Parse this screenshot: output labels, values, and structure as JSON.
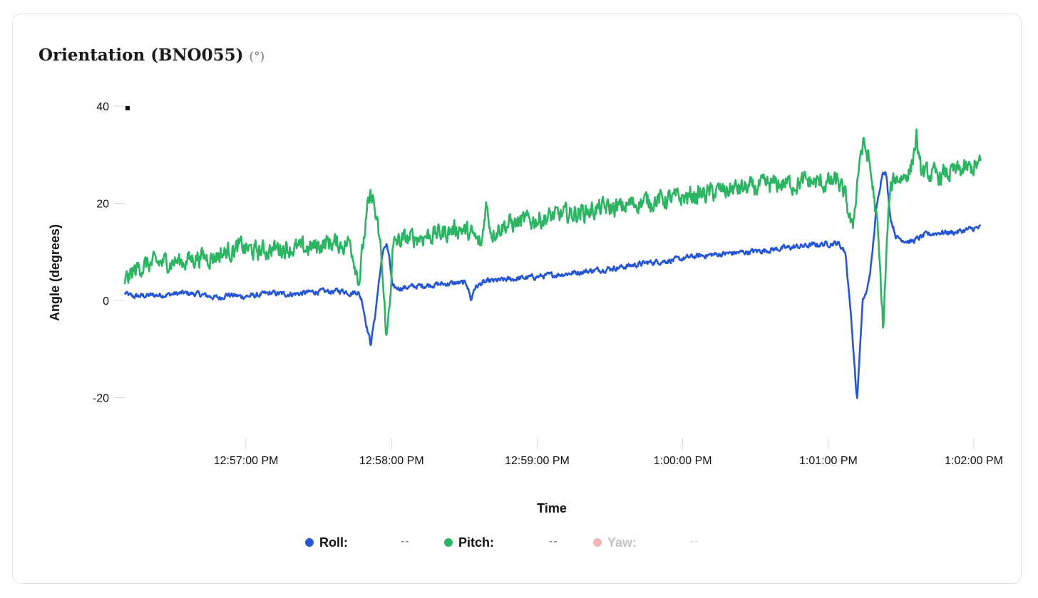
{
  "card": {
    "title": "Orientation (BNO055)",
    "unit": "(°)"
  },
  "chart_data": {
    "type": "line",
    "title": "Orientation (BNO055)",
    "xlabel": "Time",
    "ylabel": "Angle (degrees)",
    "ylim": [
      -30,
      40
    ],
    "yticks": [
      -20,
      0,
      20,
      40
    ],
    "xlim_minutes": [
      0,
      5.9
    ],
    "xticks": [
      {
        "t": 0.833,
        "label": "12:57:00 PM"
      },
      {
        "t": 1.833,
        "label": "12:58:00 PM"
      },
      {
        "t": 2.833,
        "label": "12:59:00 PM"
      },
      {
        "t": 3.833,
        "label": "1:00:00 PM"
      },
      {
        "t": 4.833,
        "label": "1:01:00 PM"
      },
      {
        "t": 5.833,
        "label": "1:02:00 PM"
      }
    ],
    "start_time": "12:56:10 PM",
    "series": [
      {
        "name": "Roll",
        "color": "#2456d6",
        "points": [
          [
            0.0,
            1.5
          ],
          [
            0.05,
            0.8
          ],
          [
            0.15,
            1.0
          ],
          [
            0.3,
            1.2
          ],
          [
            0.4,
            1.5
          ],
          [
            0.5,
            1.3
          ],
          [
            0.65,
            0.5
          ],
          [
            0.7,
            1.2
          ],
          [
            0.8,
            0.8
          ],
          [
            0.9,
            1.0
          ],
          [
            1.0,
            1.5
          ],
          [
            1.1,
            1.3
          ],
          [
            1.2,
            1.4
          ],
          [
            1.3,
            1.8
          ],
          [
            1.4,
            1.8
          ],
          [
            1.5,
            2.0
          ],
          [
            1.55,
            1.5
          ],
          [
            1.6,
            1.8
          ],
          [
            1.63,
            0.0
          ],
          [
            1.66,
            -5.0
          ],
          [
            1.69,
            -9.0
          ],
          [
            1.72,
            -3.0
          ],
          [
            1.75,
            5.0
          ],
          [
            1.78,
            11.0
          ],
          [
            1.8,
            11.5
          ],
          [
            1.82,
            8.0
          ],
          [
            1.84,
            2.5
          ],
          [
            1.9,
            2.6
          ],
          [
            2.0,
            2.9
          ],
          [
            2.1,
            3.2
          ],
          [
            2.2,
            3.4
          ],
          [
            2.3,
            3.6
          ],
          [
            2.35,
            3.5
          ],
          [
            2.38,
            0.0
          ],
          [
            2.4,
            2.5
          ],
          [
            2.45,
            3.5
          ],
          [
            2.5,
            3.9
          ],
          [
            2.6,
            4.2
          ],
          [
            2.8,
            4.8
          ],
          [
            3.0,
            5.4
          ],
          [
            3.2,
            6.1
          ],
          [
            3.4,
            6.8
          ],
          [
            3.6,
            7.8
          ],
          [
            3.8,
            8.4
          ],
          [
            3.9,
            9.0
          ],
          [
            4.0,
            9.3
          ],
          [
            4.2,
            9.8
          ],
          [
            4.4,
            10.3
          ],
          [
            4.6,
            11.0
          ],
          [
            4.8,
            11.6
          ],
          [
            4.9,
            11.8
          ],
          [
            4.95,
            10.0
          ],
          [
            4.98,
            0.0
          ],
          [
            5.01,
            -12.0
          ],
          [
            5.03,
            -21.0
          ],
          [
            5.05,
            -10.0
          ],
          [
            5.07,
            0.0
          ],
          [
            5.1,
            2.0
          ],
          [
            5.13,
            8.0
          ],
          [
            5.16,
            18.0
          ],
          [
            5.19,
            24.0
          ],
          [
            5.21,
            27.0
          ],
          [
            5.23,
            26.0
          ],
          [
            5.26,
            17.0
          ],
          [
            5.3,
            13.0
          ],
          [
            5.4,
            12.0
          ],
          [
            5.5,
            13.5
          ],
          [
            5.6,
            14.0
          ],
          [
            5.7,
            14.0
          ],
          [
            5.8,
            14.6
          ],
          [
            5.88,
            15.0
          ]
        ]
      },
      {
        "name": "Pitch",
        "color": "#2bb462",
        "points": [
          [
            0.0,
            4.0
          ],
          [
            0.1,
            7.0
          ],
          [
            0.2,
            7.5
          ],
          [
            0.3,
            8.0
          ],
          [
            0.4,
            8.0
          ],
          [
            0.5,
            9.0
          ],
          [
            0.6,
            9.0
          ],
          [
            0.7,
            10.0
          ],
          [
            0.8,
            11.0
          ],
          [
            0.9,
            10.0
          ],
          [
            1.0,
            10.5
          ],
          [
            1.1,
            11.0
          ],
          [
            1.2,
            10.5
          ],
          [
            1.3,
            11.0
          ],
          [
            1.4,
            12.0
          ],
          [
            1.5,
            11.5
          ],
          [
            1.55,
            12.0
          ],
          [
            1.58,
            8.0
          ],
          [
            1.61,
            4.0
          ],
          [
            1.64,
            12.0
          ],
          [
            1.67,
            19.0
          ],
          [
            1.7,
            22.0
          ],
          [
            1.73,
            16.0
          ],
          [
            1.76,
            10.0
          ],
          [
            1.78,
            0.0
          ],
          [
            1.8,
            -8.0
          ],
          [
            1.82,
            0.0
          ],
          [
            1.84,
            10.0
          ],
          [
            1.86,
            12.0
          ],
          [
            2.0,
            13.0
          ],
          [
            2.1,
            13.5
          ],
          [
            2.2,
            14.0
          ],
          [
            2.3,
            15.0
          ],
          [
            2.4,
            13.0
          ],
          [
            2.45,
            11.0
          ],
          [
            2.48,
            20.0
          ],
          [
            2.52,
            14.0
          ],
          [
            2.6,
            15.5
          ],
          [
            2.8,
            16.5
          ],
          [
            3.0,
            17.5
          ],
          [
            3.1,
            18.0
          ],
          [
            3.2,
            18.5
          ],
          [
            3.3,
            19.0
          ],
          [
            3.4,
            19.0
          ],
          [
            3.5,
            20.0
          ],
          [
            3.6,
            20.5
          ],
          [
            3.8,
            21.0
          ],
          [
            3.9,
            21.5
          ],
          [
            4.0,
            22.0
          ],
          [
            4.1,
            22.5
          ],
          [
            4.2,
            23.0
          ],
          [
            4.3,
            23.0
          ],
          [
            4.4,
            23.5
          ],
          [
            4.5,
            24.0
          ],
          [
            4.6,
            24.0
          ],
          [
            4.7,
            24.5
          ],
          [
            4.8,
            24.0
          ],
          [
            4.9,
            24.5
          ],
          [
            4.95,
            21.0
          ],
          [
            4.98,
            17.0
          ],
          [
            5.0,
            14.0
          ],
          [
            5.02,
            21.0
          ],
          [
            5.05,
            30.0
          ],
          [
            5.08,
            32.0
          ],
          [
            5.11,
            29.0
          ],
          [
            5.14,
            23.0
          ],
          [
            5.17,
            15.0
          ],
          [
            5.19,
            5.0
          ],
          [
            5.21,
            -6.0
          ],
          [
            5.23,
            8.0
          ],
          [
            5.25,
            20.0
          ],
          [
            5.28,
            25.0
          ],
          [
            5.35,
            25.5
          ],
          [
            5.4,
            27.0
          ],
          [
            5.44,
            34.0
          ],
          [
            5.46,
            27.0
          ],
          [
            5.5,
            26.0
          ],
          [
            5.6,
            25.5
          ],
          [
            5.7,
            26.5
          ],
          [
            5.8,
            27.0
          ],
          [
            5.88,
            28.0
          ]
        ]
      },
      {
        "name": "Yaw",
        "color": "#f5b5b5",
        "points": []
      }
    ],
    "legend": [
      {
        "name": "Roll",
        "value": "--",
        "color": "#2456d6",
        "muted": false
      },
      {
        "name": "Pitch",
        "value": "--",
        "color": "#2bb462",
        "muted": false
      },
      {
        "name": "Yaw",
        "value": "--",
        "color": "#f5b5b5",
        "muted": true
      }
    ]
  }
}
